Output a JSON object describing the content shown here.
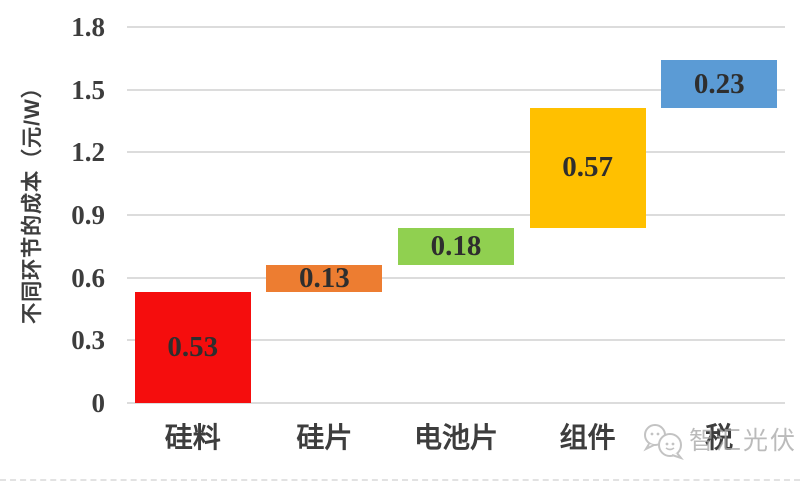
{
  "watermark": {
    "text": "智汇光伏",
    "icon": "chat-bubbles-logo"
  },
  "chart_data": {
    "type": "bar",
    "variant": "waterfall",
    "title": "",
    "xlabel": "",
    "ylabel": "不同环节的成本（元/W）",
    "categories": [
      "硅料",
      "硅片",
      "电池片",
      "组件",
      "税"
    ],
    "series": [
      {
        "name": "不同环节的成本",
        "values": [
          0.53,
          0.13,
          0.18,
          0.57,
          0.23
        ],
        "starts": [
          0,
          0.53,
          0.66,
          0.84,
          1.41
        ],
        "ends": [
          0.53,
          0.66,
          0.84,
          1.41,
          1.64
        ]
      }
    ],
    "value_labels": [
      "0.53",
      "0.13",
      "0.18",
      "0.57",
      "0.23"
    ],
    "bar_colors": [
      "#f50d0d",
      "#ed7d31",
      "#90d050",
      "#ffc000",
      "#5b9bd5"
    ],
    "yticks": [
      0,
      0.3,
      0.6,
      0.9,
      1.2,
      1.5,
      1.8
    ],
    "ytick_labels": [
      "0",
      "0.3",
      "0.6",
      "0.9",
      "1.2",
      "1.5",
      "1.8"
    ],
    "ylim": [
      0,
      1.8
    ],
    "grid": true,
    "legend": "none",
    "colors": {
      "gridline": "#dcdcdc",
      "tick_text": "#3d3d3d",
      "category_text": "#3d3d3d",
      "value_text": "#2e2e2e",
      "watermark": "#a8a8a8"
    }
  }
}
